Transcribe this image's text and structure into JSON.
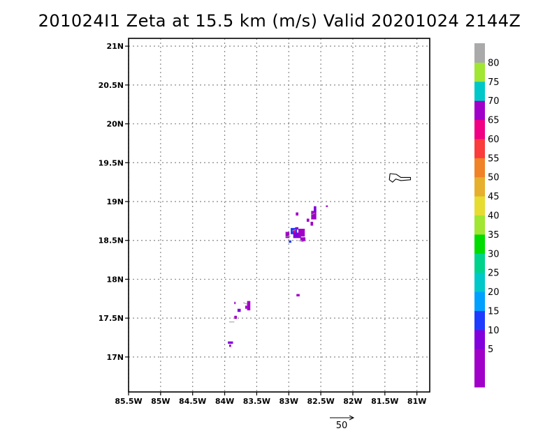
{
  "title": "201024I1 Zeta at 15.5 km (m/s) Valid 20201024 2144Z",
  "chart_data": {
    "type": "heatmap",
    "title": "201024I1 Zeta at 15.5 km (m/s) Valid 20201024 2144Z",
    "xlabel": "",
    "ylabel": "",
    "xlim": [
      -85.5,
      -80.8
    ],
    "ylim": [
      16.55,
      21.1
    ],
    "grid": true,
    "x_ticks": [
      {
        "value": -85.5,
        "label": "85.5W"
      },
      {
        "value": -85,
        "label": "85W"
      },
      {
        "value": -84.5,
        "label": "84.5W"
      },
      {
        "value": -84,
        "label": "84W"
      },
      {
        "value": -83.5,
        "label": "83.5W"
      },
      {
        "value": -83,
        "label": "83W"
      },
      {
        "value": -82.5,
        "label": "82.5W"
      },
      {
        "value": -82,
        "label": "82W"
      },
      {
        "value": -81.5,
        "label": "81.5W"
      },
      {
        "value": -81,
        "label": "81W"
      }
    ],
    "y_ticks": [
      {
        "value": 17,
        "label": "17N"
      },
      {
        "value": 17.5,
        "label": "17.5N"
      },
      {
        "value": 18,
        "label": "18N"
      },
      {
        "value": 18.5,
        "label": "18.5N"
      },
      {
        "value": 19,
        "label": "19N"
      },
      {
        "value": 19.5,
        "label": "19.5N"
      },
      {
        "value": 20,
        "label": "20N"
      },
      {
        "value": 20.5,
        "label": "20.5N"
      },
      {
        "value": 21,
        "label": "21N"
      }
    ],
    "colorbar": {
      "levels": [
        {
          "color": "#a000c8",
          "label": ""
        },
        {
          "color": "#a000c8",
          "label": "5"
        },
        {
          "color": "#8200dc",
          "label": "10"
        },
        {
          "color": "#1e3cff",
          "label": "15"
        },
        {
          "color": "#00a0ff",
          "label": "20"
        },
        {
          "color": "#00c8c8",
          "label": "25"
        },
        {
          "color": "#00d28c",
          "label": "30"
        },
        {
          "color": "#00dc00",
          "label": "35"
        },
        {
          "color": "#a0e632",
          "label": "40"
        },
        {
          "color": "#e6dc32",
          "label": "45"
        },
        {
          "color": "#e6af2d",
          "label": "50"
        },
        {
          "color": "#f08228",
          "label": "55"
        },
        {
          "color": "#fa3c3c",
          "label": "60"
        },
        {
          "color": "#f00082",
          "label": "65"
        },
        {
          "color": "#a000c8",
          "label": "70"
        },
        {
          "color": "#00c8c8",
          "label": "75"
        },
        {
          "color": "#a0e632",
          "label": "80"
        },
        {
          "color": "#aaaaaa",
          "label": ""
        }
      ]
    },
    "cells": [
      {
        "lon": -82.97,
        "lat": 18.58,
        "w": 0.1,
        "h": 0.08,
        "color": "#1e3cff"
      },
      {
        "lon": -82.93,
        "lat": 18.53,
        "w": 0.12,
        "h": 0.07,
        "color": "#8200dc"
      },
      {
        "lon": -82.85,
        "lat": 18.55,
        "w": 0.1,
        "h": 0.1,
        "color": "#a000c8"
      },
      {
        "lon": -82.82,
        "lat": 18.49,
        "w": 0.08,
        "h": 0.05,
        "color": "#a000c8"
      },
      {
        "lon": -83.05,
        "lat": 18.53,
        "w": 0.06,
        "h": 0.08,
        "color": "#a000c8"
      },
      {
        "lon": -83.0,
        "lat": 18.47,
        "w": 0.04,
        "h": 0.03,
        "color": "#1e3cff"
      },
      {
        "lon": -82.9,
        "lat": 18.64,
        "w": 0.05,
        "h": 0.03,
        "color": "#8200dc"
      },
      {
        "lon": -82.93,
        "lat": 18.6,
        "w": 0.04,
        "h": 0.03,
        "color": "#f00082"
      },
      {
        "lon": -82.89,
        "lat": 18.82,
        "w": 0.04,
        "h": 0.04,
        "color": "#a000c8"
      },
      {
        "lon": -82.65,
        "lat": 18.77,
        "w": 0.08,
        "h": 0.11,
        "color": "#a000c8"
      },
      {
        "lon": -82.61,
        "lat": 18.87,
        "w": 0.04,
        "h": 0.07,
        "color": "#8200dc"
      },
      {
        "lon": -82.66,
        "lat": 18.69,
        "w": 0.04,
        "h": 0.05,
        "color": "#a000c8"
      },
      {
        "lon": -82.72,
        "lat": 18.74,
        "w": 0.04,
        "h": 0.04,
        "color": "#a000c8"
      },
      {
        "lon": -82.42,
        "lat": 18.93,
        "w": 0.03,
        "h": 0.02,
        "color": "#a000c8"
      },
      {
        "lon": -82.88,
        "lat": 17.78,
        "w": 0.05,
        "h": 0.03,
        "color": "#a000c8"
      },
      {
        "lon": -83.65,
        "lat": 17.6,
        "w": 0.05,
        "h": 0.12,
        "color": "#a000c8"
      },
      {
        "lon": -83.68,
        "lat": 17.62,
        "w": 0.03,
        "h": 0.04,
        "color": "#a000c8"
      },
      {
        "lon": -83.8,
        "lat": 17.58,
        "w": 0.05,
        "h": 0.04,
        "color": "#8200dc"
      },
      {
        "lon": -83.85,
        "lat": 17.68,
        "w": 0.02,
        "h": 0.03,
        "color": "#a000c8"
      },
      {
        "lon": -83.85,
        "lat": 17.49,
        "w": 0.04,
        "h": 0.04,
        "color": "#a000c8"
      },
      {
        "lon": -83.95,
        "lat": 17.17,
        "w": 0.08,
        "h": 0.03,
        "color": "#8200dc"
      },
      {
        "lon": -83.93,
        "lat": 17.13,
        "w": 0.03,
        "h": 0.03,
        "color": "#a000c8"
      }
    ],
    "vectors_gray": [
      {
        "lon": -83.05,
        "lat": 18.55,
        "dx": 0.08,
        "dy": 0.0
      },
      {
        "lon": -82.95,
        "lat": 18.62,
        "dx": 0.06,
        "dy": 0.02
      },
      {
        "lon": -82.85,
        "lat": 18.5,
        "dx": 0.08,
        "dy": -0.02
      },
      {
        "lon": -82.65,
        "lat": 18.83,
        "dx": 0.06,
        "dy": 0.02
      },
      {
        "lon": -83.85,
        "lat": 17.45,
        "dx": -0.08,
        "dy": 0.0
      },
      {
        "lon": -83.65,
        "lat": 17.68,
        "dx": -0.06,
        "dy": 0.02
      }
    ],
    "coastline": [
      [
        -81.42,
        19.36
      ],
      [
        -81.32,
        19.35
      ],
      [
        -81.25,
        19.31
      ],
      [
        -81.1,
        19.31
      ],
      [
        -81.1,
        19.28
      ],
      [
        -81.25,
        19.27
      ],
      [
        -81.33,
        19.29
      ],
      [
        -81.38,
        19.25
      ],
      [
        -81.43,
        19.28
      ],
      [
        -81.42,
        19.36
      ]
    ],
    "reference_vector": {
      "label": "50"
    }
  }
}
